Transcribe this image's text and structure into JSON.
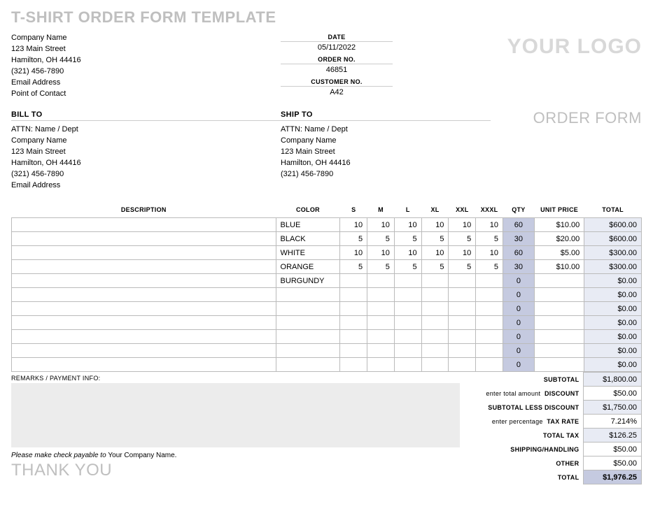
{
  "title": "T-SHIRT ORDER FORM TEMPLATE",
  "logo_text": "YOUR LOGO",
  "order_form_label": "ORDER FORM",
  "company": {
    "name": "Company Name",
    "street": "123 Main Street",
    "city": "Hamilton, OH 44416",
    "phone": "(321) 456-7890",
    "email": "Email Address",
    "contact": "Point of Contact"
  },
  "meta": {
    "date_hdr": "DATE",
    "date": "05/11/2022",
    "orderno_hdr": "ORDER NO.",
    "orderno": "46851",
    "custno_hdr": "CUSTOMER NO.",
    "custno": "A42"
  },
  "billto": {
    "hdr": "BILL TO",
    "attn": "ATTN: Name / Dept",
    "name": "Company Name",
    "street": "123 Main Street",
    "city": "Hamilton, OH 44416",
    "phone": "(321) 456-7890",
    "email": "Email Address"
  },
  "shipto": {
    "hdr": "SHIP TO",
    "attn": "ATTN: Name / Dept",
    "name": "Company Name",
    "street": "123 Main Street",
    "city": "Hamilton, OH 44416",
    "phone": "(321) 456-7890"
  },
  "columns": {
    "desc": "DESCRIPTION",
    "color": "COLOR",
    "s": "S",
    "m": "M",
    "l": "L",
    "xl": "XL",
    "xxl": "XXL",
    "xxxl": "XXXL",
    "qty": "QTY",
    "up": "UNIT PRICE",
    "tot": "TOTAL"
  },
  "rows": [
    {
      "desc": "",
      "color": "BLUE",
      "s": "10",
      "m": "10",
      "l": "10",
      "xl": "10",
      "xxl": "10",
      "xxxl": "10",
      "qty": "60",
      "up": "$10.00",
      "tot": "$600.00"
    },
    {
      "desc": "",
      "color": "BLACK",
      "s": "5",
      "m": "5",
      "l": "5",
      "xl": "5",
      "xxl": "5",
      "xxxl": "5",
      "qty": "30",
      "up": "$20.00",
      "tot": "$600.00"
    },
    {
      "desc": "",
      "color": "WHITE",
      "s": "10",
      "m": "10",
      "l": "10",
      "xl": "10",
      "xxl": "10",
      "xxxl": "10",
      "qty": "60",
      "up": "$5.00",
      "tot": "$300.00"
    },
    {
      "desc": "",
      "color": "ORANGE",
      "s": "5",
      "m": "5",
      "l": "5",
      "xl": "5",
      "xxl": "5",
      "xxxl": "5",
      "qty": "30",
      "up": "$10.00",
      "tot": "$300.00"
    },
    {
      "desc": "",
      "color": "BURGUNDY",
      "s": "",
      "m": "",
      "l": "",
      "xl": "",
      "xxl": "",
      "xxxl": "",
      "qty": "0",
      "up": "",
      "tot": "$0.00"
    },
    {
      "desc": "",
      "color": "",
      "s": "",
      "m": "",
      "l": "",
      "xl": "",
      "xxl": "",
      "xxxl": "",
      "qty": "0",
      "up": "",
      "tot": "$0.00"
    },
    {
      "desc": "",
      "color": "",
      "s": "",
      "m": "",
      "l": "",
      "xl": "",
      "xxl": "",
      "xxxl": "",
      "qty": "0",
      "up": "",
      "tot": "$0.00"
    },
    {
      "desc": "",
      "color": "",
      "s": "",
      "m": "",
      "l": "",
      "xl": "",
      "xxl": "",
      "xxxl": "",
      "qty": "0",
      "up": "",
      "tot": "$0.00"
    },
    {
      "desc": "",
      "color": "",
      "s": "",
      "m": "",
      "l": "",
      "xl": "",
      "xxl": "",
      "xxxl": "",
      "qty": "0",
      "up": "",
      "tot": "$0.00"
    },
    {
      "desc": "",
      "color": "",
      "s": "",
      "m": "",
      "l": "",
      "xl": "",
      "xxl": "",
      "xxxl": "",
      "qty": "0",
      "up": "",
      "tot": "$0.00"
    },
    {
      "desc": "",
      "color": "",
      "s": "",
      "m": "",
      "l": "",
      "xl": "",
      "xxl": "",
      "xxxl": "",
      "qty": "0",
      "up": "",
      "tot": "$0.00"
    }
  ],
  "remarks_hdr": "REMARKS / PAYMENT INFO:",
  "payable_prefix": "Please make check payable to ",
  "payable_name": "Your Company Name.",
  "thank_you": "THANK YOU",
  "summary": {
    "subtotal_lbl": "SUBTOTAL",
    "subtotal": "$1,800.00",
    "discount_hint": "enter total amount",
    "discount_lbl": "DISCOUNT",
    "discount": "$50.00",
    "lessdisc_lbl": "SUBTOTAL LESS DISCOUNT",
    "lessdisc": "$1,750.00",
    "taxrate_hint": "enter percentage",
    "taxrate_lbl": "TAX RATE",
    "taxrate": "7.214%",
    "totaltax_lbl": "TOTAL TAX",
    "totaltax": "$126.25",
    "shipping_lbl": "SHIPPING/HANDLING",
    "shipping": "$50.00",
    "other_lbl": "OTHER",
    "other": "$50.00",
    "total_lbl": "TOTAL",
    "total": "$1,976.25"
  }
}
